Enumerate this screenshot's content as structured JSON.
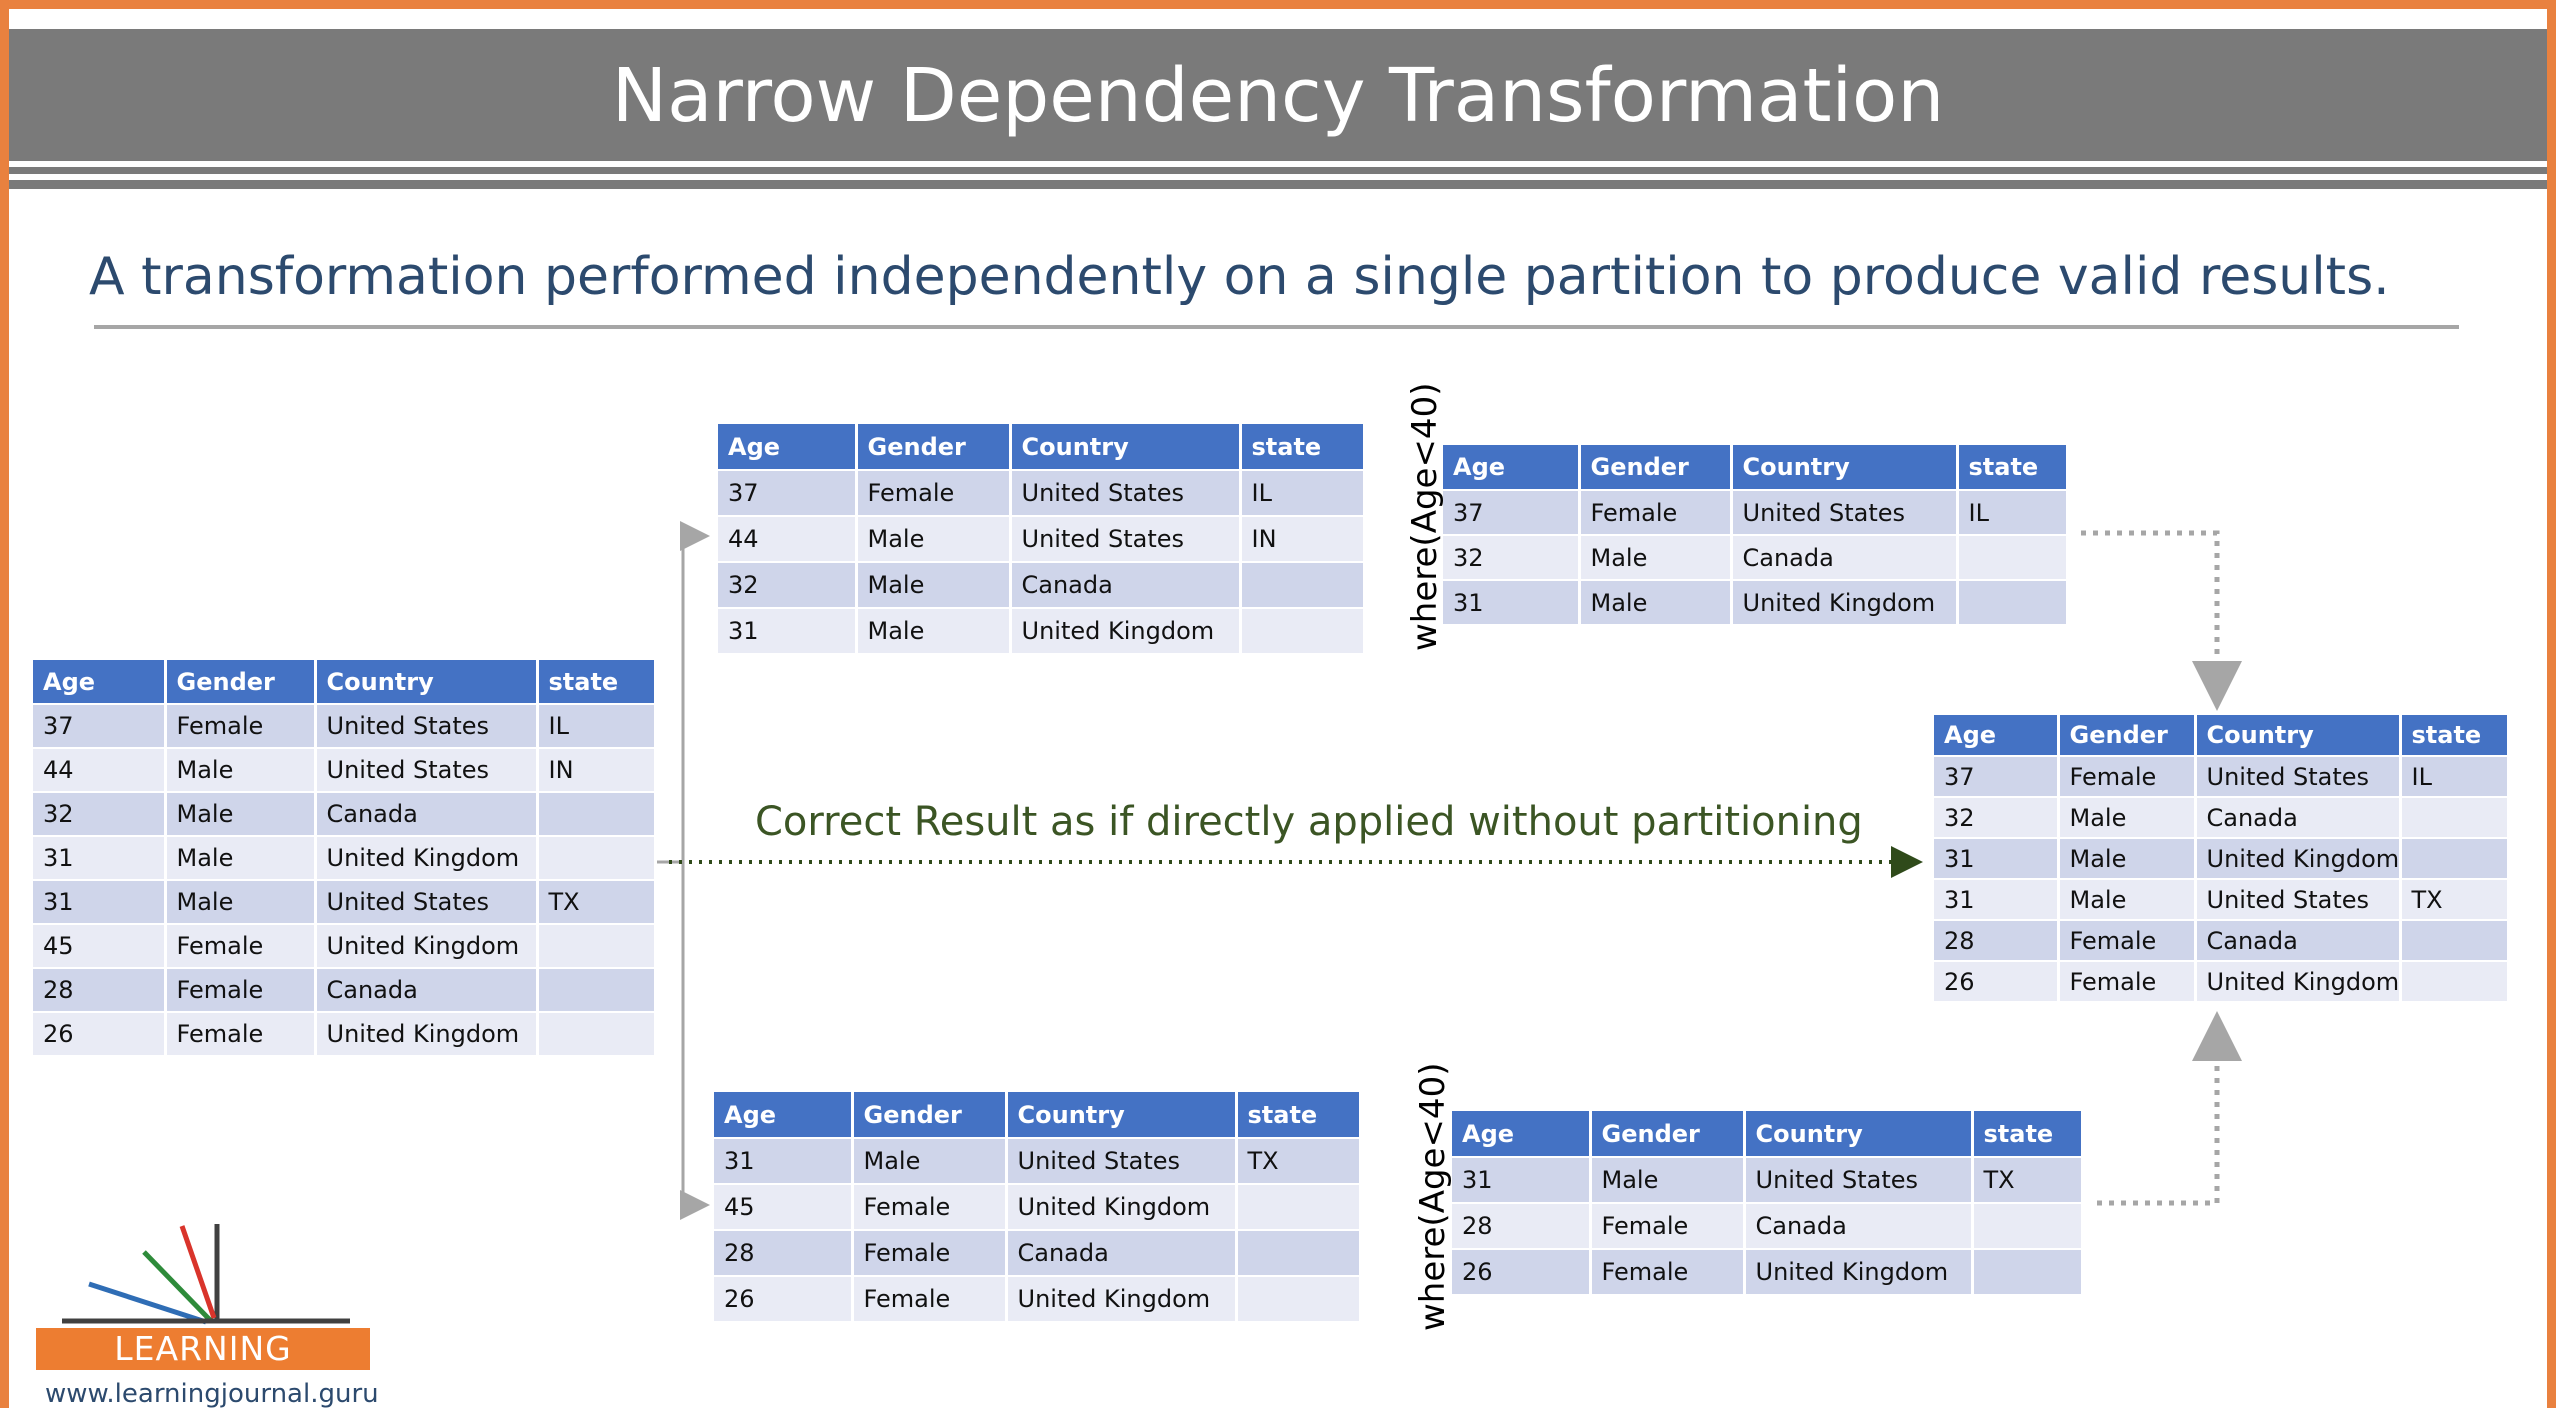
{
  "slide": {
    "title": "Narrow Dependency Transformation",
    "subtitle": "A transformation performed independently on a single partition to produce valid results."
  },
  "columns": [
    "Age",
    "Gender",
    "Country",
    "state"
  ],
  "tables": {
    "source": [
      [
        "37",
        "Female",
        "United States",
        "IL"
      ],
      [
        "44",
        "Male",
        "United States",
        "IN"
      ],
      [
        "32",
        "Male",
        "Canada",
        ""
      ],
      [
        "31",
        "Male",
        "United Kingdom",
        ""
      ],
      [
        "31",
        "Male",
        "United States",
        "TX"
      ],
      [
        "45",
        "Female",
        "United Kingdom",
        ""
      ],
      [
        "28",
        "Female",
        "Canada",
        ""
      ],
      [
        "26",
        "Female",
        "United Kingdom",
        ""
      ]
    ],
    "partition_1": [
      [
        "37",
        "Female",
        "United States",
        "IL"
      ],
      [
        "44",
        "Male",
        "United States",
        "IN"
      ],
      [
        "32",
        "Male",
        "Canada",
        ""
      ],
      [
        "31",
        "Male",
        "United Kingdom",
        ""
      ]
    ],
    "partition_2": [
      [
        "31",
        "Male",
        "United States",
        "TX"
      ],
      [
        "45",
        "Female",
        "United Kingdom",
        ""
      ],
      [
        "28",
        "Female",
        "Canada",
        ""
      ],
      [
        "26",
        "Female",
        "United Kingdom",
        ""
      ]
    ],
    "filtered_1": [
      [
        "37",
        "Female",
        "United States",
        "IL"
      ],
      [
        "32",
        "Male",
        "Canada",
        ""
      ],
      [
        "31",
        "Male",
        "United Kingdom",
        ""
      ]
    ],
    "filtered_2": [
      [
        "31",
        "Male",
        "United States",
        "TX"
      ],
      [
        "28",
        "Female",
        "Canada",
        ""
      ],
      [
        "26",
        "Female",
        "United Kingdom",
        ""
      ]
    ],
    "result": [
      [
        "37",
        "Female",
        "United States",
        "IL"
      ],
      [
        "32",
        "Male",
        "Canada",
        ""
      ],
      [
        "31",
        "Male",
        "United Kingdom",
        ""
      ],
      [
        "31",
        "Male",
        "United States",
        "TX"
      ],
      [
        "28",
        "Female",
        "Canada",
        ""
      ],
      [
        "26",
        "Female",
        "United Kingdom",
        ""
      ]
    ]
  },
  "operations": {
    "top": "where(Age<40)",
    "bottom": "where(Age<40)"
  },
  "result_caption": "Correct Result as if directly applied without partitioning",
  "logo": {
    "name": "LEARNING JOURNAL",
    "url": "www.learningjournal.guru"
  },
  "colors": {
    "frame": "#e9813f",
    "title_band": "#7a7a7a",
    "table_header": "#4472c4",
    "row_odd": "#cfd5ea",
    "row_even": "#e9ebf5",
    "caption": "#3b5524"
  }
}
